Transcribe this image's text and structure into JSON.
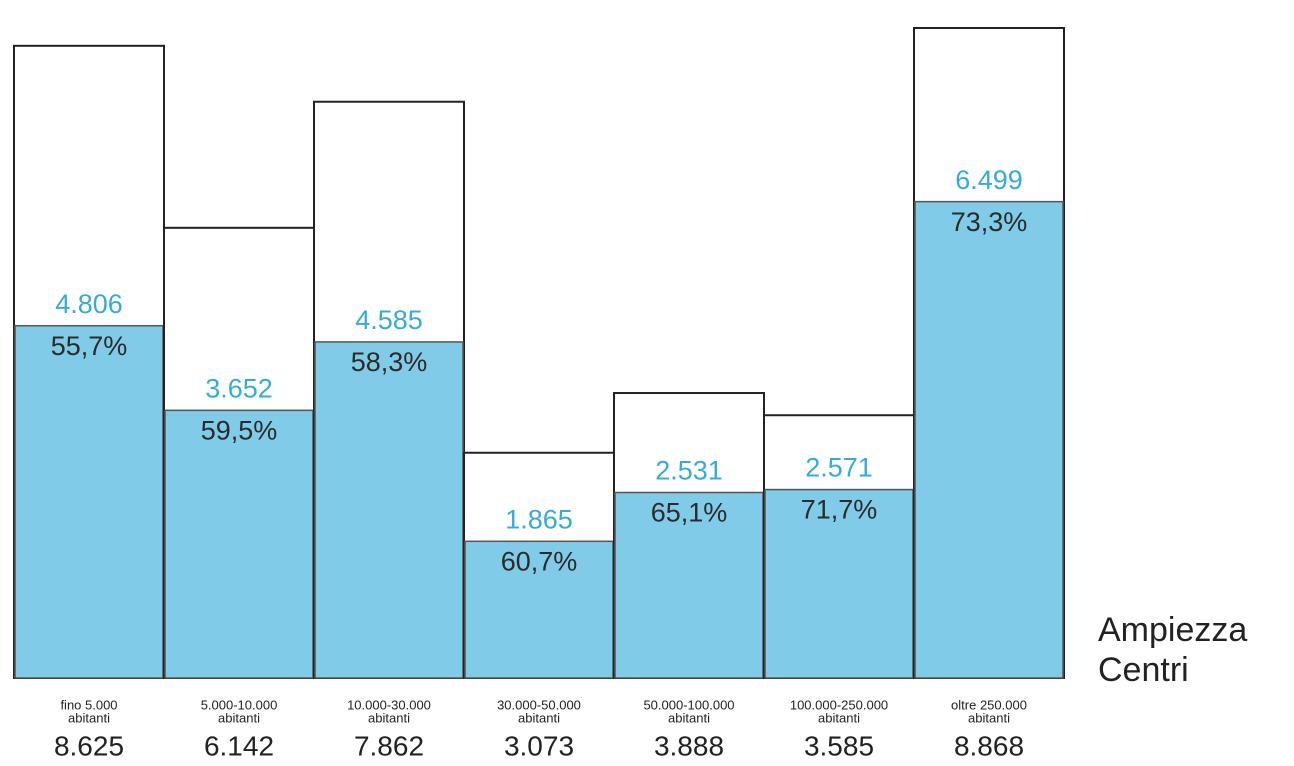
{
  "chart_data": {
    "type": "bar",
    "categories": [
      [
        "fino 5.000",
        "abitanti"
      ],
      [
        "5.000-10.000",
        "abitanti"
      ],
      [
        "10.000-30.000",
        "abitanti"
      ],
      [
        "30.000-50.000",
        "abitanti"
      ],
      [
        "50.000-100.000",
        "abitanti"
      ],
      [
        "100.000-250.000",
        "abitanti"
      ],
      [
        "oltre 250.000",
        "abitanti"
      ]
    ],
    "series": [
      {
        "color": "#ffffff",
        "values": [
          8625,
          6142,
          7862,
          3073,
          3888,
          3585,
          8868
        ],
        "value_labels": [
          "8.625",
          "6.142",
          "7.862",
          "3.073",
          "3.888",
          "3.585",
          "8.868"
        ]
      },
      {
        "color": "#80cbe7",
        "values": [
          4806,
          3652,
          4585,
          1865,
          2531,
          2571,
          6499
        ],
        "value_labels": [
          "4.806",
          "3.652",
          "4.585",
          "1.865",
          "2.531",
          "2.571",
          "6.499"
        ]
      },
      {
        "color": "#2b2b2b",
        "values": [
          55.7,
          59.5,
          58.3,
          60.7,
          65.1,
          71.7,
          73.3
        ],
        "value_labels": [
          "55,7%",
          "59,5%",
          "58,3%",
          "60,7%",
          "65,1%",
          "71,7%",
          "73,3%"
        ]
      }
    ],
    "x_label": [
      "Ampiezza",
      "Centri"
    ]
  }
}
